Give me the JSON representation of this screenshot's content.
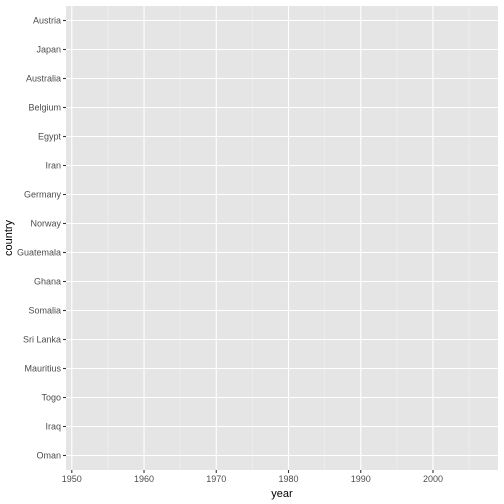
{
  "chart_data": {
    "type": "scatter",
    "title": "",
    "xlabel": "year",
    "ylabel": "country",
    "xlim": [
      1949.2,
      2009.0
    ],
    "x_ticks": [
      1950,
      1960,
      1970,
      1980,
      1990,
      2000
    ],
    "categories": [
      "Oman",
      "Iraq",
      "Togo",
      "Mauritius",
      "Sri Lanka",
      "Somalia",
      "Ghana",
      "Guatemala",
      "Norway",
      "Germany",
      "Iran",
      "Egypt",
      "Belgium",
      "Australia",
      "Japan",
      "Austria"
    ],
    "series": [],
    "grid": true,
    "legend": "none",
    "colors": {
      "panel_background": "#e5e5e5",
      "grid_major": "#ffffff",
      "grid_minor": "#f2f2f2",
      "tick_text": "#4d4d4d",
      "tick_mark": "#333333",
      "title_text": "#000000"
    }
  }
}
